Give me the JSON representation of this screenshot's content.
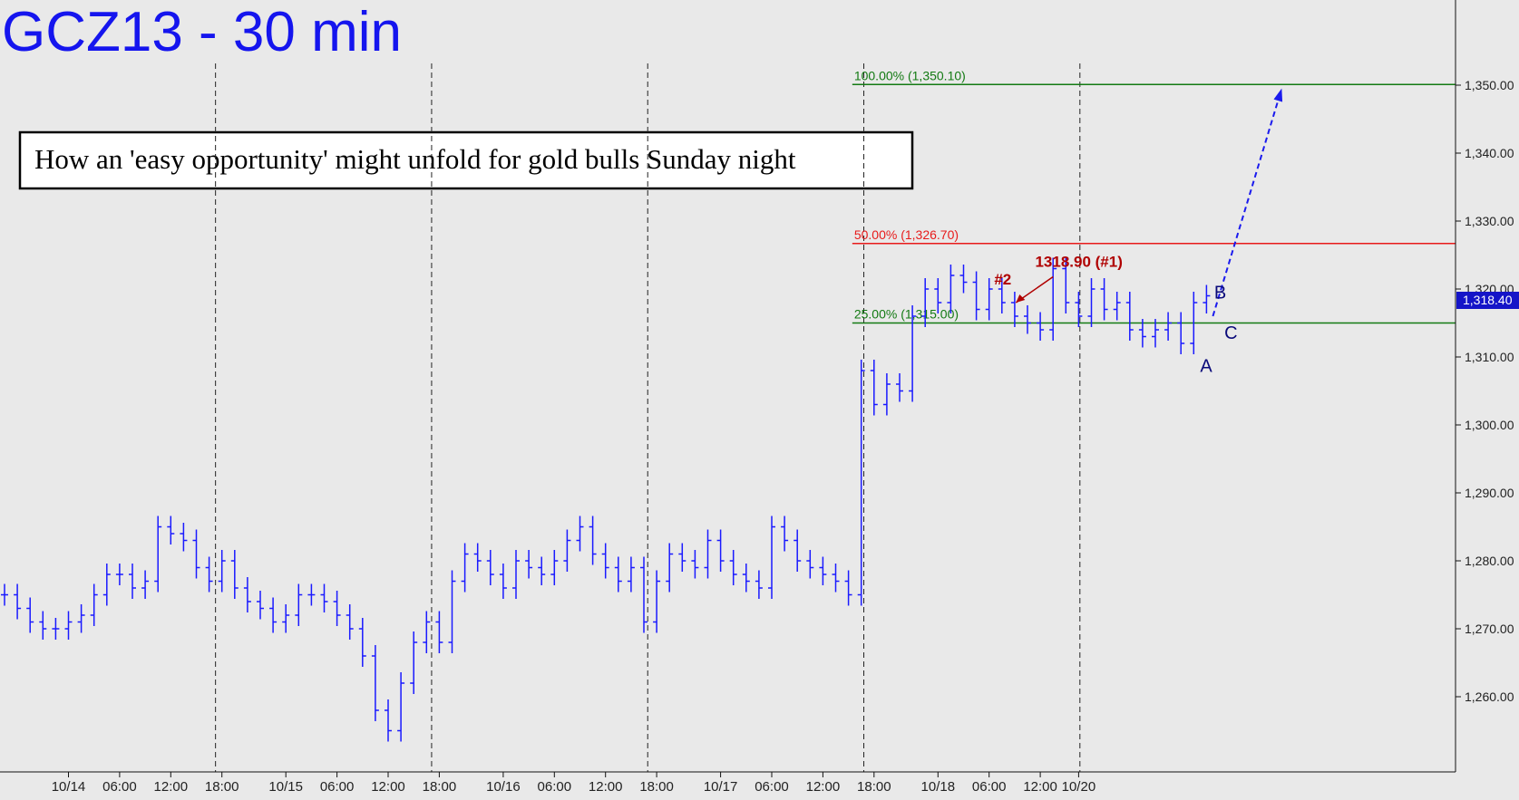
{
  "chart_data": {
    "type": "bar",
    "title": "GCZ13 - 30 min",
    "subtitle": "How an 'easy opportunity' might unfold for gold bulls Sunday night",
    "xlabel": "",
    "ylabel": "",
    "ylim": [
      1250,
      1360
    ],
    "grid": false,
    "y_ticks": [
      "1,260.00",
      "1,270.00",
      "1,280.00",
      "1,290.00",
      "1,300.00",
      "1,310.00",
      "1,320.00",
      "1,330.00",
      "1,340.00",
      "1,350.00"
    ],
    "y_tick_values": [
      1260,
      1270,
      1280,
      1290,
      1300,
      1310,
      1320,
      1330,
      1340,
      1350
    ],
    "x_ticks": [
      "10/14",
      "06:00",
      "12:00",
      "18:00",
      "10/15",
      "06:00",
      "12:00",
      "18:00",
      "10/16",
      "06:00",
      "12:00",
      "18:00",
      "10/17",
      "06:00",
      "12:00",
      "18:00",
      "10/18",
      "06:00",
      "12:00",
      "10/20"
    ],
    "x_tick_bars": [
      5,
      9,
      13,
      17,
      22,
      26,
      30,
      34,
      39,
      43,
      47,
      51,
      56,
      60,
      64,
      68,
      73,
      77,
      81,
      84
    ],
    "day_separator_bars": [
      16.5,
      33.4,
      50.3,
      67.2,
      84.1
    ],
    "last_price_label": "1,318.40",
    "last_price": 1318.4,
    "levels": [
      {
        "label": "100.00% (1,350.10)",
        "value": 1350.1,
        "color": "#137a13"
      },
      {
        "label": "50.00% (1,326.70)",
        "value": 1326.7,
        "color": "#e81b1b"
      },
      {
        "label": "25.00% (1,315.00)",
        "value": 1315.0,
        "color": "#137a13"
      }
    ],
    "annotations": [
      {
        "id": "target",
        "text": "1318.90 (#1)",
        "color": "#b00000"
      },
      {
        "id": "second",
        "text": "#2",
        "color": "#b00000"
      },
      {
        "id": "A",
        "text": "A",
        "color": "#0a0a7a"
      },
      {
        "id": "B",
        "text": "B",
        "color": "#0a0a7a"
      },
      {
        "id": "C",
        "text": "C",
        "color": "#0a0a7a"
      }
    ],
    "series": [
      {
        "color": "#1a1aff",
        "values": [
          1275,
          1273,
          1271,
          1270,
          1270,
          1271,
          1272,
          1275,
          1278,
          1278,
          1276,
          1277,
          1285,
          1284,
          1283,
          1279,
          1277,
          1280,
          1276,
          1274,
          1273,
          1271,
          1272,
          1275,
          1275,
          1274,
          1272,
          1270,
          1266,
          1258,
          1255,
          1262,
          1268,
          1271,
          1268,
          1277,
          1281,
          1280,
          1278,
          1276,
          1280,
          1279,
          1278,
          1280,
          1283,
          1285,
          1281,
          1279,
          1277,
          1279,
          1271,
          1277,
          1281,
          1280,
          1279,
          1283,
          1280,
          1278,
          1277,
          1276,
          1285,
          1283,
          1280,
          1279,
          1278,
          1277,
          1275,
          1308,
          1303,
          1306,
          1305,
          1316,
          1320,
          1318,
          1322,
          1321,
          1317,
          1320,
          1318,
          1316,
          1315,
          1314,
          1323,
          1318,
          1316,
          1320,
          1317,
          1318,
          1314,
          1313,
          1314,
          1315,
          1312,
          1318,
          1319
        ]
      }
    ],
    "projection_values": [
      1316,
      1349
    ]
  }
}
